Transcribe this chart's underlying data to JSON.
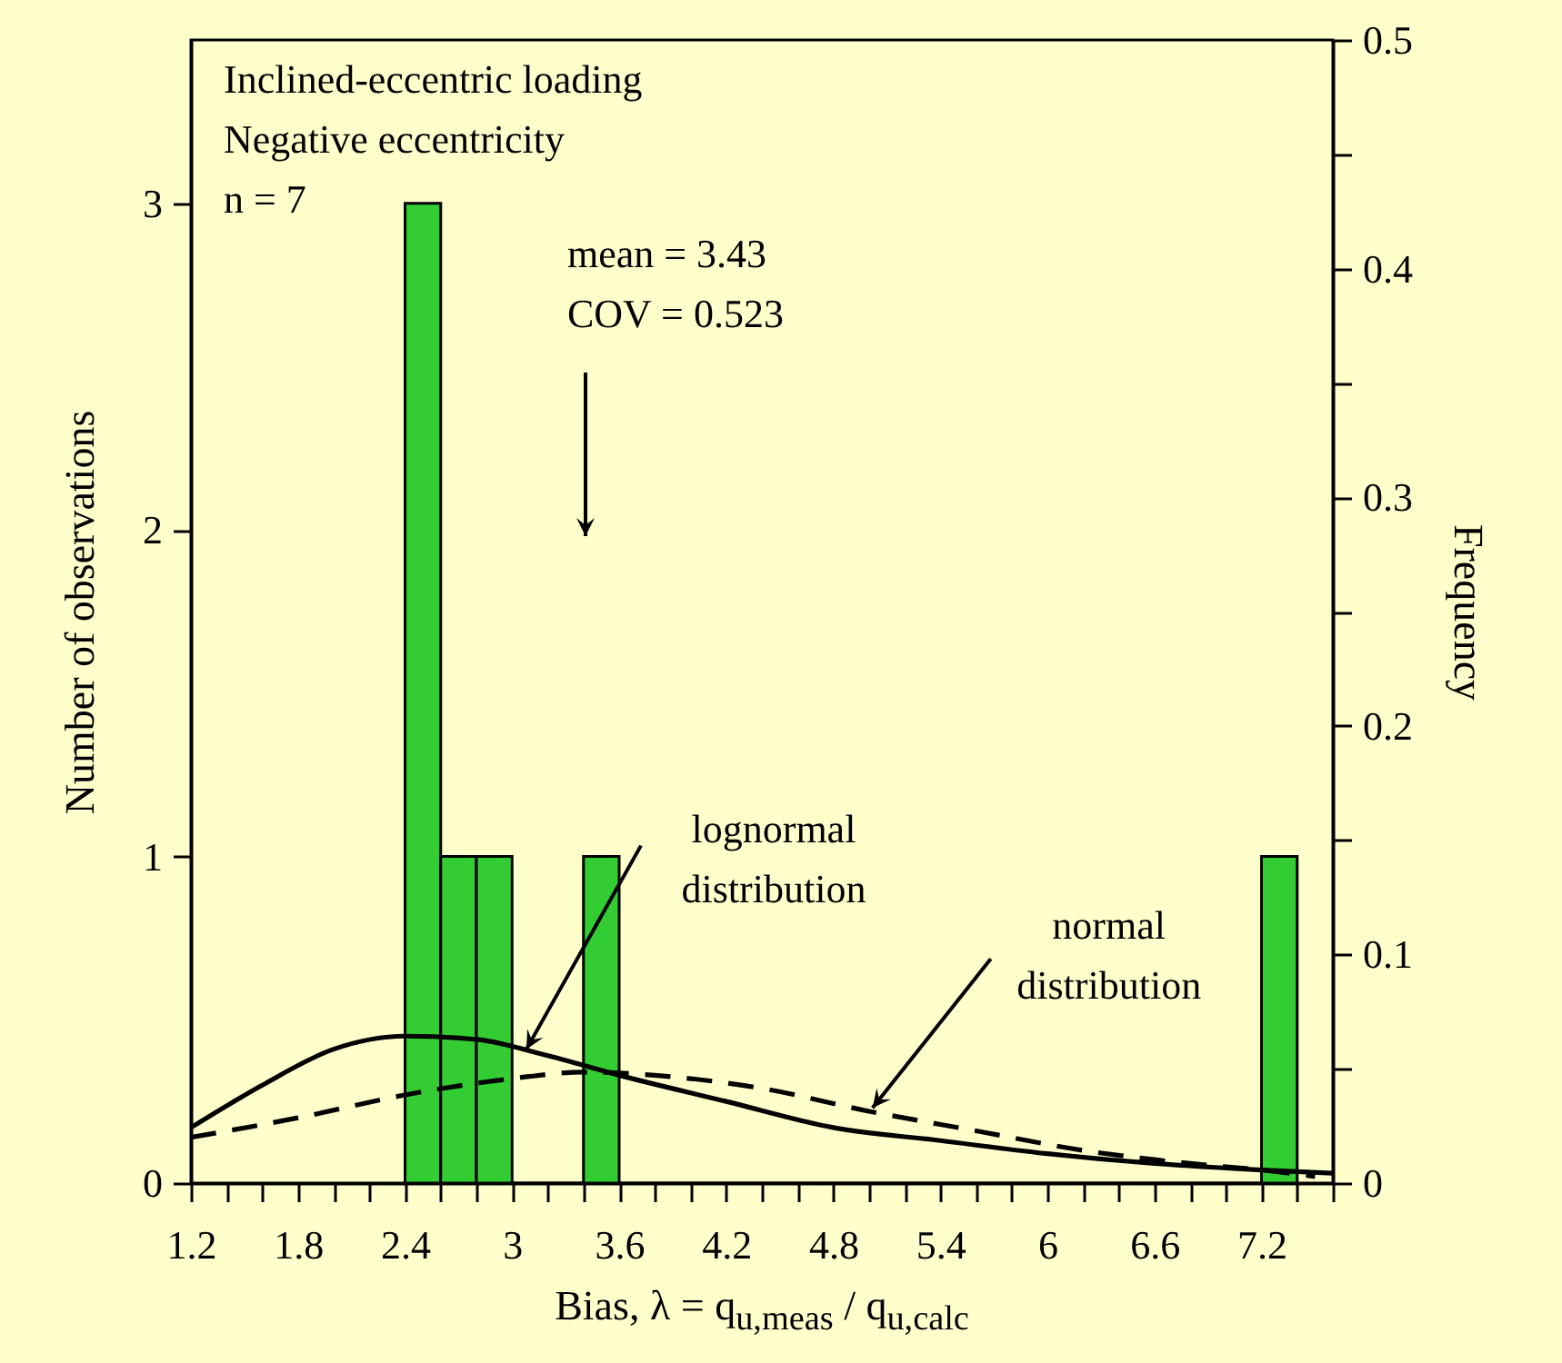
{
  "chart_data": {
    "type": "histogram",
    "bins": [
      2.4,
      2.6,
      2.8,
      3.0,
      3.2,
      3.4,
      3.6,
      3.8,
      4.0,
      4.2,
      4.4,
      4.6,
      4.8,
      5.0,
      5.2,
      5.4,
      5.6,
      5.8,
      6.0,
      6.2,
      6.4,
      6.6,
      6.8,
      7.0,
      7.2,
      7.4
    ],
    "values": [
      3,
      1,
      1,
      0,
      0,
      1,
      0,
      0,
      0,
      0,
      0,
      0,
      0,
      0,
      0,
      0,
      0,
      0,
      0,
      0,
      0,
      0,
      0,
      0,
      1
    ],
    "color": "#33cc33",
    "series": [
      {
        "type": "line",
        "color": "#000000",
        "line_style": "solid",
        "x": [
          1.2,
          1.6,
          2.0,
          2.4,
          2.8,
          3.2,
          3.6,
          4.2,
          4.8,
          5.4,
          6.0,
          6.6,
          7.2,
          7.6
        ],
        "values": [
          0.17,
          0.3,
          0.41,
          0.45,
          0.44,
          0.39,
          0.33,
          0.25,
          0.17,
          0.13,
          0.09,
          0.06,
          0.04,
          0.03
        ]
      },
      {
        "type": "line",
        "color": "#000000",
        "line_style": "dashed",
        "x": [
          1.2,
          1.8,
          2.4,
          3.0,
          3.4,
          3.8,
          4.4,
          5.0,
          5.6,
          6.2,
          6.8,
          7.2,
          7.5
        ],
        "values": [
          0.14,
          0.2,
          0.27,
          0.32,
          0.34,
          0.33,
          0.29,
          0.22,
          0.16,
          0.1,
          0.06,
          0.04,
          0.02
        ]
      }
    ],
    "xlabel": "Bias, λ = q$_{u,meas}$ / q$_{u,calc}$",
    "ylabel": "Number of observations",
    "y2label": "Frequency",
    "xlim": [
      1.2,
      7.6
    ],
    "xticks": [
      1.2,
      {
        "value": 1.4,
        "label": null
      },
      {
        "value": 1.6,
        "label": null
      },
      1.8,
      {
        "value": 2.0,
        "label": null
      },
      {
        "value": 2.2,
        "label": null
      },
      2.4,
      {
        "value": 2.6,
        "label": null
      },
      {
        "value": 2.8,
        "label": null
      },
      3,
      {
        "value": 3.2,
        "label": null
      },
      {
        "value": 3.4,
        "label": null
      },
      3.6,
      {
        "value": 3.8,
        "label": null
      },
      {
        "value": 4.0,
        "label": null
      },
      4.2,
      {
        "value": 4.4,
        "label": null
      },
      {
        "value": 4.6,
        "label": null
      },
      4.8,
      {
        "value": 5.0,
        "label": null
      },
      {
        "value": 5.2,
        "label": null
      },
      5.4,
      {
        "value": 5.6,
        "label": null
      },
      {
        "value": 5.8,
        "label": null
      },
      6,
      {
        "value": 6.2,
        "label": null
      },
      {
        "value": 6.4,
        "label": null
      },
      6.6,
      {
        "value": 6.8,
        "label": null
      },
      {
        "value": 7.0,
        "label": null
      },
      7.2,
      {
        "value": 7.4,
        "label": null
      },
      {
        "value": 7.6,
        "label": null
      }
    ],
    "ylim": [
      0,
      3.5
    ],
    "yticks": [
      0,
      1,
      2,
      3
    ],
    "y2lim": [
      0,
      0.5
    ],
    "y2ticks": [
      0,
      {
        "value": 0.05,
        "label": null
      },
      0.1,
      {
        "value": 0.15,
        "label": null
      },
      0.2,
      {
        "value": 0.25,
        "label": null
      },
      0.3,
      {
        "value": 0.35,
        "label": null
      },
      0.4,
      {
        "value": 0.45,
        "label": null
      },
      0.5
    ],
    "grid": false,
    "annotations": [
      "Inclined-eccentric loading",
      "Negative eccentricity",
      "n = 7",
      "mean = 3.43\nCOV = 0.523",
      {
        "text": "lognormal\ndistribution",
        "x": 3.08,
        "y": 0.41
      },
      {
        "text": "normal\ndistribution",
        "x": 5.02,
        "y": 0.23
      }
    ]
  }
}
